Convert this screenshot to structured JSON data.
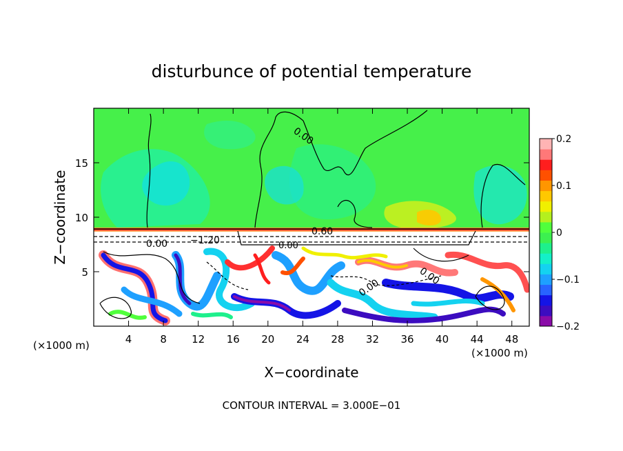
{
  "chart_data": {
    "type": "heatmap",
    "title": "disturbunce of potential temperature",
    "xlabel": "X−coordinate",
    "ylabel": "Z−coordinate",
    "x_unit_left": "(×1000 m)",
    "x_unit_right": "(×1000 m)",
    "xlim": [
      0,
      50
    ],
    "ylim": [
      0,
      20
    ],
    "x_ticks": [
      4,
      8,
      12,
      16,
      20,
      24,
      28,
      32,
      36,
      40,
      44,
      48
    ],
    "x_tick_labels": [
      "4",
      "8",
      "12",
      "16",
      "20",
      "24",
      "28",
      "32",
      "36",
      "40",
      "44",
      "48"
    ],
    "y_ticks": [
      5,
      10,
      15
    ],
    "y_tick_labels": [
      "5",
      "10",
      "15"
    ],
    "colorbar": {
      "range": [
        -0.2,
        0.2
      ],
      "ticks": [
        0.2,
        0.1,
        0,
        -0.1,
        -0.2
      ],
      "tick_labels": [
        "0.2",
        "0.1",
        "0",
        "−0.1",
        "−0.2"
      ],
      "colors": [
        "#8a0ca8",
        "#3c0cc0",
        "#1414e6",
        "#2864ff",
        "#1ea0ff",
        "#14d2f0",
        "#14f0c8",
        "#1ef08c",
        "#3cf050",
        "#50ff3c",
        "#b4f01e",
        "#f0f000",
        "#ffc800",
        "#ff9600",
        "#ff5000",
        "#ff1e1e",
        "#ff7878",
        "#ffb4b4"
      ]
    },
    "contour_labels": [
      "0.00",
      "0.60",
      "−1.20",
      "0.00",
      "0.00",
      "0.00",
      "0.00"
    ],
    "footer": "CONTOUR INTERVAL = 3.000E−01"
  }
}
